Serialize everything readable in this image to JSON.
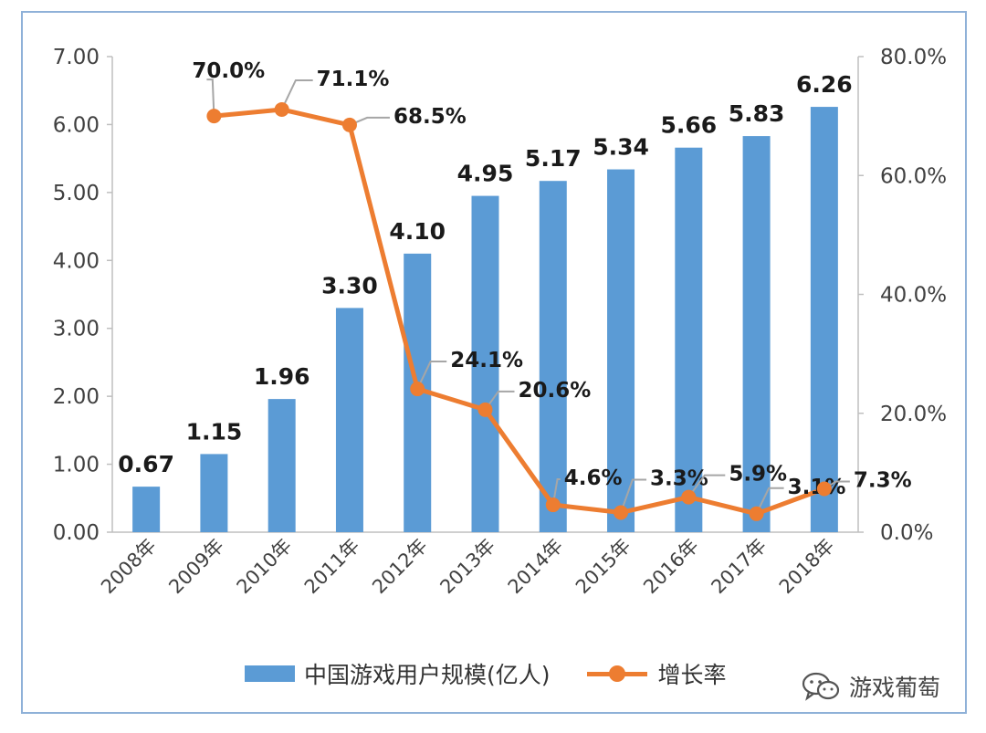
{
  "chart_data": {
    "type": "bar+line",
    "categories": [
      "2008年",
      "2009年",
      "2010年",
      "2011年",
      "2012年",
      "2013年",
      "2014年",
      "2015年",
      "2016年",
      "2017年",
      "2018年"
    ],
    "series": [
      {
        "name": "中国游戏用户规模(亿人)",
        "type": "bar",
        "axis": "left",
        "values": [
          0.67,
          1.15,
          1.96,
          3.3,
          4.1,
          4.95,
          5.17,
          5.34,
          5.66,
          5.83,
          6.26
        ],
        "labels": [
          "0.67",
          "1.15",
          "1.96",
          "3.30",
          "4.10",
          "4.95",
          "5.17",
          "5.34",
          "5.66",
          "5.83",
          "6.26"
        ],
        "color": "#5b9bd5"
      },
      {
        "name": "增长率",
        "type": "line",
        "axis": "right",
        "values": [
          null,
          70.0,
          71.1,
          68.5,
          24.1,
          20.6,
          4.6,
          3.3,
          5.9,
          3.1,
          7.3
        ],
        "labels": [
          "",
          "70.0%",
          "71.1%",
          "68.5%",
          "24.1%",
          "20.6%",
          "4.6%",
          "3.3%",
          "5.9%",
          "3.1%",
          "7.3%"
        ],
        "color": "#ed7d31"
      }
    ],
    "y_left": {
      "min": 0,
      "max": 7,
      "ticks": [
        "0.00",
        "1.00",
        "2.00",
        "3.00",
        "4.00",
        "5.00",
        "6.00",
        "7.00"
      ]
    },
    "y_right": {
      "min": 0,
      "max": 80,
      "ticks": [
        "0.0%",
        "20.0%",
        "40.0%",
        "60.0%",
        "80.0%"
      ]
    },
    "legend_position": "bottom",
    "grid": false
  },
  "legend": {
    "bar_label": "中国游戏用户规模(亿人)",
    "line_label": "增长率"
  },
  "watermark": {
    "text": "游戏葡萄"
  }
}
